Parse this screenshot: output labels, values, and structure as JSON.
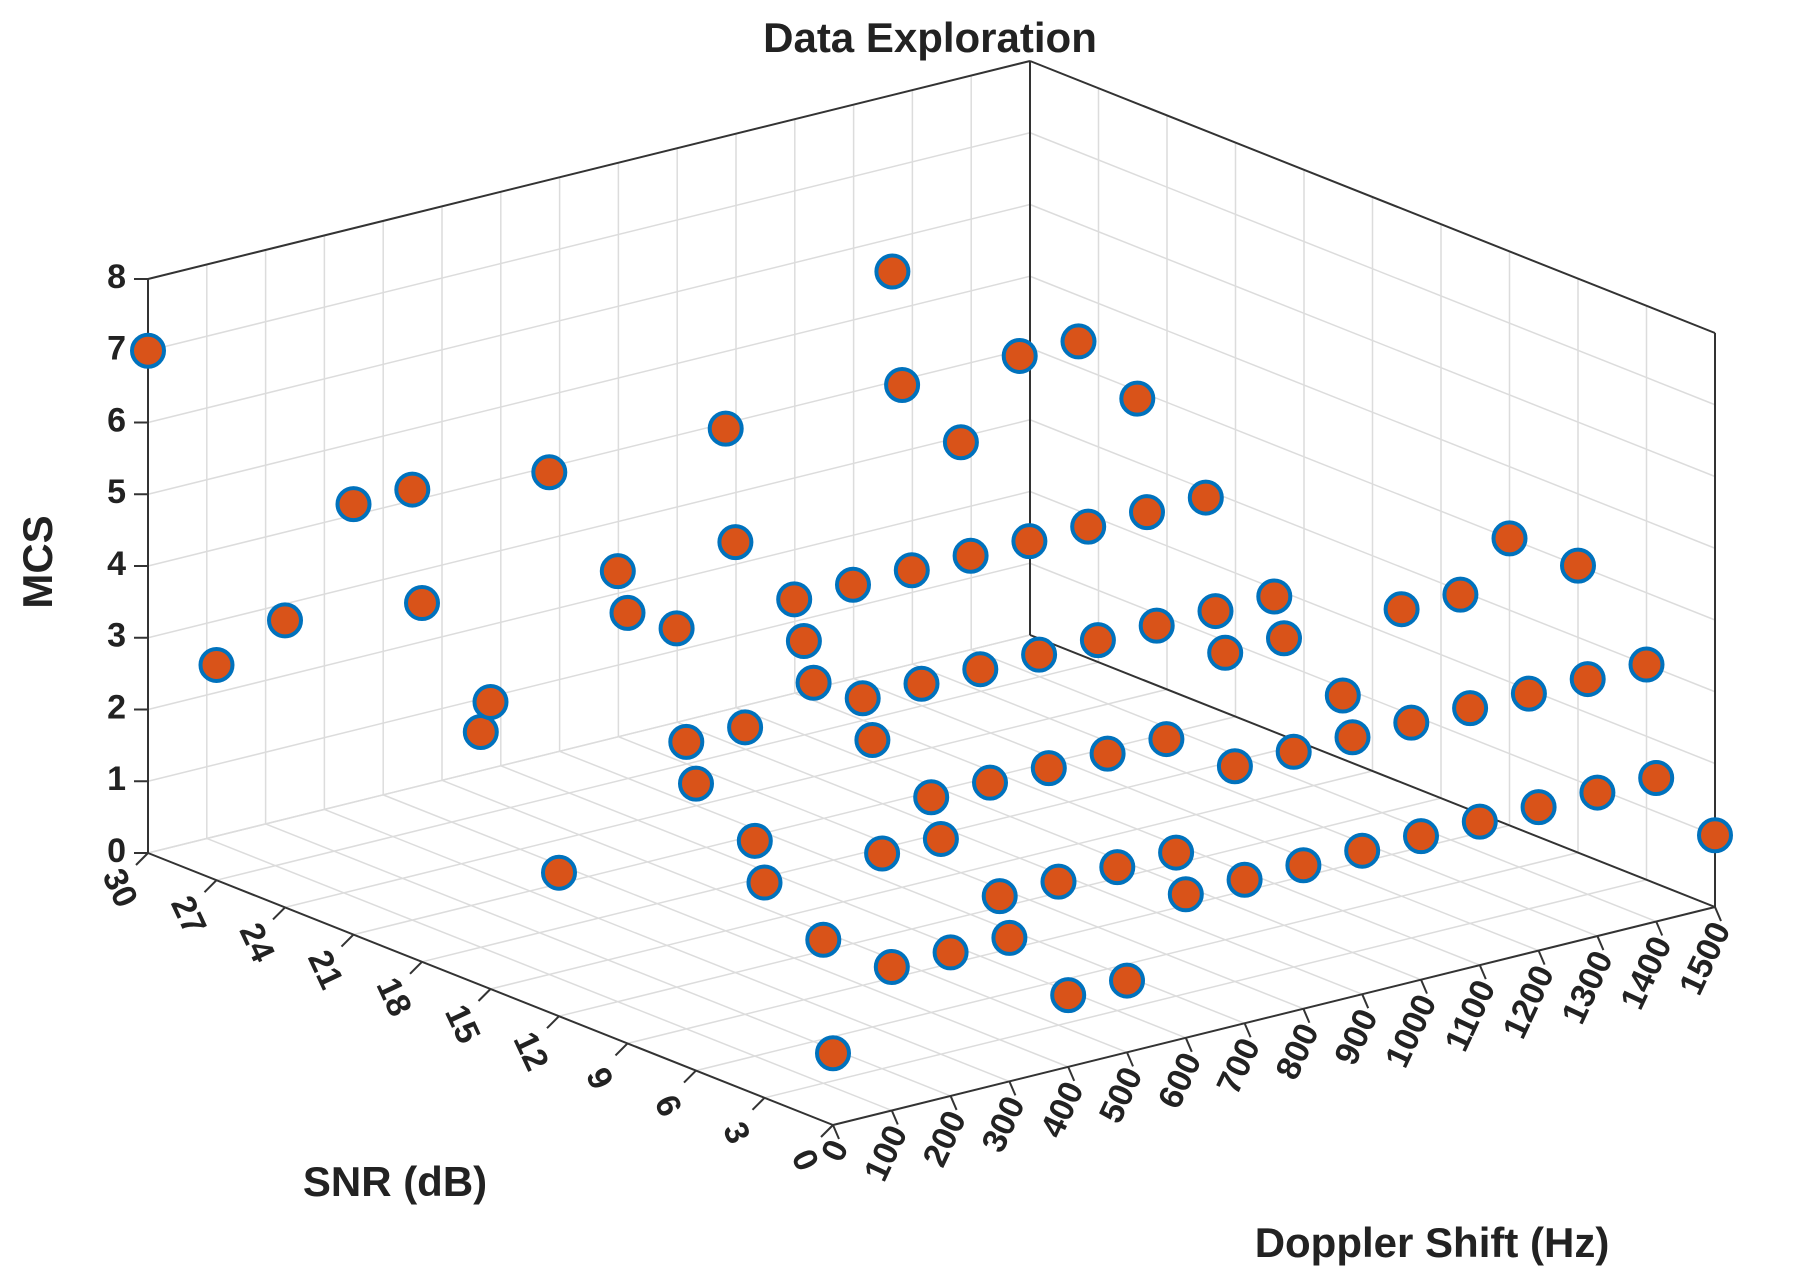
{
  "chart_data": {
    "type": "scatter",
    "title": "Data Exploration",
    "xlabel": "Doppler Shift (Hz)",
    "ylabel": "SNR (dB)",
    "zlabel": "MCS",
    "xlim": [
      0,
      1500
    ],
    "ylim": [
      0,
      30
    ],
    "zlim": [
      0,
      8
    ],
    "xticks": [
      "0",
      "100",
      "200",
      "300",
      "400",
      "500",
      "600",
      "700",
      "800",
      "900",
      "1000",
      "1100",
      "1200",
      "1300",
      "1400",
      "1500"
    ],
    "yticks": [
      "0",
      "3",
      "6",
      "9",
      "12",
      "15",
      "18",
      "21",
      "24",
      "27",
      "30"
    ],
    "zticks": [
      "0",
      "1",
      "2",
      "3",
      "4",
      "5",
      "6",
      "7",
      "8"
    ],
    "grid": true,
    "marker_face": "#d95319",
    "marker_edge": "#0072bd",
    "series": [
      {
        "points": [
          {
            "x": 0,
            "y": 30,
            "z": 7
          },
          {
            "x": 0,
            "y": 27,
            "z": 3
          },
          {
            "x": 0,
            "y": 24,
            "z": 4
          },
          {
            "x": 0,
            "y": 21,
            "z": 6
          },
          {
            "x": 0,
            "y": 18,
            "z": 5
          },
          {
            "x": 0,
            "y": 15,
            "z": 4
          },
          {
            "x": 0,
            "y": 12,
            "z": 2
          },
          {
            "x": 0,
            "y": 9,
            "z": 6
          },
          {
            "x": 0,
            "y": 6,
            "z": 4
          },
          {
            "x": 0,
            "y": 3,
            "z": 3
          },
          {
            "x": 0,
            "y": 0,
            "z": 1
          },
          {
            "x": 100,
            "y": 0,
            "z": 2
          },
          {
            "x": 100,
            "y": 3,
            "z": 2
          },
          {
            "x": 100,
            "y": 6,
            "z": 3
          },
          {
            "x": 100,
            "y": 9,
            "z": 4
          },
          {
            "x": 100,
            "y": 12,
            "z": 6
          },
          {
            "x": 100,
            "y": 15,
            "z": 7
          },
          {
            "x": 100,
            "y": 18,
            "z": 3
          },
          {
            "x": 100,
            "y": 21,
            "z": 6
          },
          {
            "x": 200,
            "y": 0,
            "z": 2
          },
          {
            "x": 200,
            "y": 3,
            "z": 3
          },
          {
            "x": 200,
            "y": 6,
            "z": 5
          },
          {
            "x": 200,
            "y": 9,
            "z": 4
          },
          {
            "x": 200,
            "y": 12,
            "z": 5
          },
          {
            "x": 300,
            "y": 0,
            "z": 2
          },
          {
            "x": 300,
            "y": 3,
            "z": 3
          },
          {
            "x": 300,
            "y": 6,
            "z": 4
          },
          {
            "x": 300,
            "y": 9,
            "z": 5
          },
          {
            "x": 300,
            "y": 12,
            "z": 6
          },
          {
            "x": 400,
            "y": 0,
            "z": 1
          },
          {
            "x": 400,
            "y": 3,
            "z": 2
          },
          {
            "x": 400,
            "y": 6,
            "z": 3
          },
          {
            "x": 400,
            "y": 9,
            "z": 4
          },
          {
            "x": 400,
            "y": 12,
            "z": 5
          },
          {
            "x": 400,
            "y": 15,
            "z": 7
          },
          {
            "x": 500,
            "y": 0,
            "z": 1
          },
          {
            "x": 500,
            "y": 3,
            "z": 2
          },
          {
            "x": 500,
            "y": 6,
            "z": 3
          },
          {
            "x": 500,
            "y": 9,
            "z": 4
          },
          {
            "x": 500,
            "y": 12,
            "z": 5
          },
          {
            "x": 600,
            "y": 0,
            "z": 2
          },
          {
            "x": 600,
            "y": 3,
            "z": 2
          },
          {
            "x": 600,
            "y": 6,
            "z": 3
          },
          {
            "x": 600,
            "y": 9,
            "z": 4
          },
          {
            "x": 600,
            "y": 12,
            "z": 5
          },
          {
            "x": 700,
            "y": 0,
            "z": 2
          },
          {
            "x": 700,
            "y": 3,
            "z": 2
          },
          {
            "x": 700,
            "y": 6,
            "z": 3
          },
          {
            "x": 700,
            "y": 9,
            "z": 4
          },
          {
            "x": 700,
            "y": 12,
            "z": 5
          },
          {
            "x": 700,
            "y": 15,
            "z": 7
          },
          {
            "x": 800,
            "y": 0,
            "z": 2
          },
          {
            "x": 800,
            "y": 3,
            "z": 3
          },
          {
            "x": 800,
            "y": 6,
            "z": 3
          },
          {
            "x": 800,
            "y": 9,
            "z": 4
          },
          {
            "x": 800,
            "y": 12,
            "z": 5
          },
          {
            "x": 800,
            "y": 15,
            "z": 6
          },
          {
            "x": 800,
            "y": 18,
            "z": 8
          },
          {
            "x": 900,
            "y": 0,
            "z": 2
          },
          {
            "x": 900,
            "y": 3,
            "z": 3
          },
          {
            "x": 900,
            "y": 6,
            "z": 4
          },
          {
            "x": 900,
            "y": 9,
            "z": 4
          },
          {
            "x": 900,
            "y": 12,
            "z": 5
          },
          {
            "x": 900,
            "y": 15,
            "z": 7
          },
          {
            "x": 1000,
            "y": 0,
            "z": 2
          },
          {
            "x": 1000,
            "y": 3,
            "z": 3
          },
          {
            "x": 1000,
            "y": 6,
            "z": 4
          },
          {
            "x": 1000,
            "y": 9,
            "z": 4
          },
          {
            "x": 1000,
            "y": 12,
            "z": 5
          },
          {
            "x": 1000,
            "y": 15,
            "z": 7
          },
          {
            "x": 1100,
            "y": 0,
            "z": 2
          },
          {
            "x": 1100,
            "y": 3,
            "z": 3
          },
          {
            "x": 1100,
            "y": 6,
            "z": 3
          },
          {
            "x": 1100,
            "y": 9,
            "z": 4
          },
          {
            "x": 1100,
            "y": 12,
            "z": 5
          },
          {
            "x": 1100,
            "y": 15,
            "z": 6
          },
          {
            "x": 1200,
            "y": 0,
            "z": 2
          },
          {
            "x": 1200,
            "y": 3,
            "z": 3
          },
          {
            "x": 1200,
            "y": 6,
            "z": 4
          },
          {
            "x": 1300,
            "y": 0,
            "z": 2
          },
          {
            "x": 1300,
            "y": 3,
            "z": 3
          },
          {
            "x": 1300,
            "y": 6,
            "z": 4
          },
          {
            "x": 1400,
            "y": 0,
            "z": 2
          },
          {
            "x": 1400,
            "y": 3,
            "z": 3
          },
          {
            "x": 1500,
            "y": 0,
            "z": 1
          },
          {
            "x": 1500,
            "y": 3,
            "z": 3
          },
          {
            "x": 1500,
            "y": 6,
            "z": 4
          },
          {
            "x": 1500,
            "y": 9,
            "z": 4
          }
        ]
      }
    ]
  }
}
